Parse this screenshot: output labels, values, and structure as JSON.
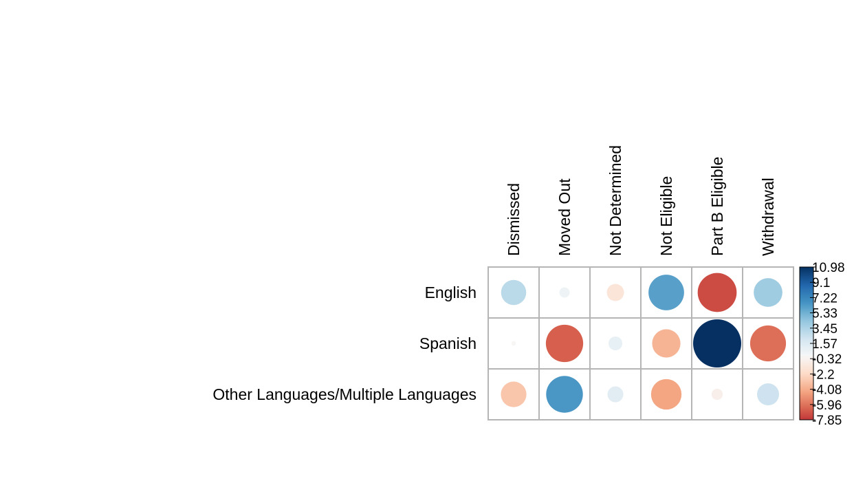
{
  "chart_data": {
    "type": "heatmap",
    "title": "",
    "xlabel": "",
    "ylabel": "",
    "columns": [
      "Dismissed",
      "Moved Out",
      "Not Determined",
      "Not Eligible",
      "Part B Eligible",
      "Withdrawal"
    ],
    "rows": [
      "English",
      "Spanish",
      "Other Languages/Multiple Languages"
    ],
    "values": [
      [
        3.0,
        0.5,
        -1.4,
        6.0,
        -7.2,
        3.9
      ],
      [
        -0.1,
        -6.6,
        0.9,
        -3.8,
        10.98,
        -6.1
      ],
      [
        -3.1,
        6.4,
        1.2,
        -4.4,
        -0.6,
        2.3
      ]
    ],
    "color_range": [
      -7.85,
      10.98
    ],
    "colorbar_ticks": [
      "10.98",
      "9.1",
      "7.22",
      "5.33",
      "3.45",
      "1.57",
      "-0.32",
      "-2.2",
      "-4.08",
      "-5.96",
      "-7.85"
    ],
    "grid": true,
    "legend_position": "right"
  }
}
